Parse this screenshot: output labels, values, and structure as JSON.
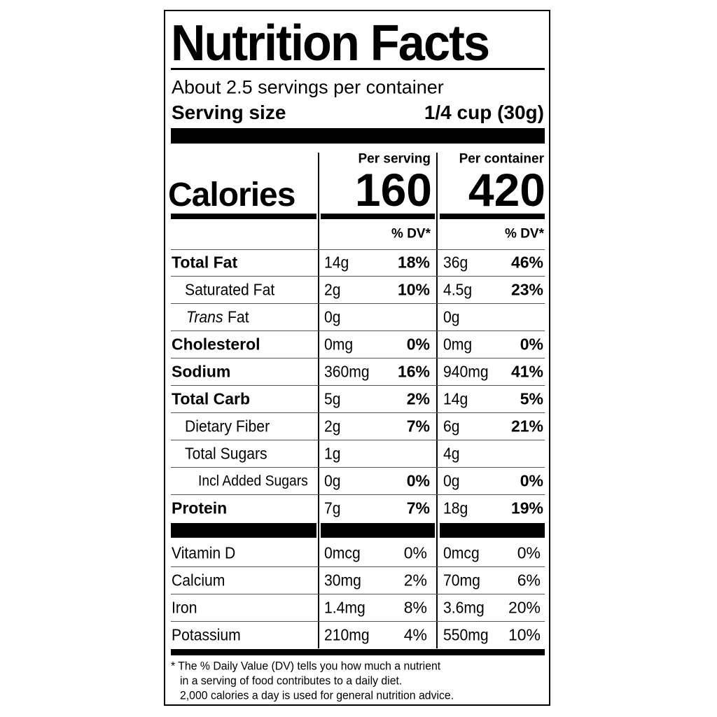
{
  "title": "Nutrition Facts",
  "servings": "About 2.5 servings per container",
  "serving_size": {
    "label": "Serving size",
    "value": "1/4 cup (30g)"
  },
  "calories_label": "Calories",
  "columns": [
    {
      "header": "Per serving",
      "calories": "160",
      "dv_header": "% DV*"
    },
    {
      "header": "Per container",
      "calories": "420",
      "dv_header": "% DV*"
    }
  ],
  "nutrients": [
    {
      "name": "Total Fat",
      "values": [
        [
          "14g",
          "18%"
        ],
        [
          "36g",
          "46%"
        ]
      ]
    },
    {
      "name": "Saturated Fat",
      "values": [
        [
          "2g",
          "10%"
        ],
        [
          "4.5g",
          "23%"
        ]
      ]
    },
    {
      "name_prefix": "Trans",
      "name": "Fat",
      "values": [
        [
          "0g",
          null
        ],
        [
          "0g",
          null
        ]
      ]
    },
    {
      "name": "Cholesterol",
      "values": [
        [
          "0mg",
          "0%"
        ],
        [
          "0mg",
          "0%"
        ]
      ]
    },
    {
      "name": "Sodium",
      "values": [
        [
          "360mg",
          "16%"
        ],
        [
          "940mg",
          "41%"
        ]
      ]
    },
    {
      "name": "Total Carb",
      "values": [
        [
          "5g",
          "2%"
        ],
        [
          "14g",
          "5%"
        ]
      ]
    },
    {
      "name": "Dietary Fiber",
      "values": [
        [
          "2g",
          "7%"
        ],
        [
          "6g",
          "21%"
        ]
      ]
    },
    {
      "name": "Total Sugars",
      "values": [
        [
          "1g",
          null
        ],
        [
          "4g",
          null
        ]
      ]
    },
    {
      "name": "Incl Added Sugars",
      "values": [
        [
          "0g",
          "0%"
        ],
        [
          "0g",
          "0%"
        ]
      ]
    },
    {
      "name": "Protein",
      "values": [
        [
          "7g",
          "7%"
        ],
        [
          "18g",
          "19%"
        ]
      ]
    }
  ],
  "vitamins": [
    {
      "name": "Vitamin D",
      "values": [
        [
          "0mcg",
          "0%"
        ],
        [
          "0mcg",
          "0%"
        ]
      ]
    },
    {
      "name": "Calcium",
      "values": [
        [
          "30mg",
          "2%"
        ],
        [
          "70mg",
          "6%"
        ]
      ]
    },
    {
      "name": "Iron",
      "values": [
        [
          "1.4mg",
          "8%"
        ],
        [
          "3.6mg",
          "20%"
        ]
      ]
    },
    {
      "name": "Potassium",
      "values": [
        [
          "210mg",
          "4%"
        ],
        [
          "550mg",
          "10%"
        ]
      ]
    }
  ],
  "footnote": [
    "* The % Daily Value (DV) tells you how much a nutrient",
    "in a serving of food contributes to a daily diet.",
    "2,000 calories a day is used for general nutrition advice."
  ]
}
